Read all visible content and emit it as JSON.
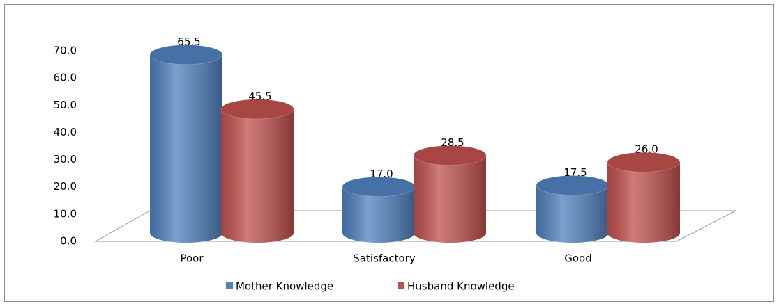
{
  "chart_data": {
    "type": "bar",
    "categories": [
      "Poor",
      "Satisfactory",
      "Good"
    ],
    "series": [
      {
        "name": "Mother Knowledge",
        "color": "#4f81bd",
        "values": [
          65.5,
          17.0,
          17.5
        ],
        "value_labels": [
          "65.5",
          "17.0",
          "17.5"
        ]
      },
      {
        "name": "Husband Knowledge",
        "color": "#c0504d",
        "values": [
          45.5,
          28.5,
          26.0
        ],
        "value_labels": [
          "45.5",
          "28.5",
          "26.0"
        ]
      }
    ],
    "ylim": [
      0,
      70
    ],
    "yticks": [
      {
        "value": 0,
        "label": "0.0"
      },
      {
        "value": 10,
        "label": "10.0"
      },
      {
        "value": 20,
        "label": "20.0"
      },
      {
        "value": 30,
        "label": "30.0"
      },
      {
        "value": 40,
        "label": "40.0"
      },
      {
        "value": 50,
        "label": "50.0"
      },
      {
        "value": 60,
        "label": "60.0"
      },
      {
        "value": 70,
        "label": "70.0"
      }
    ],
    "legend": "bottom"
  }
}
